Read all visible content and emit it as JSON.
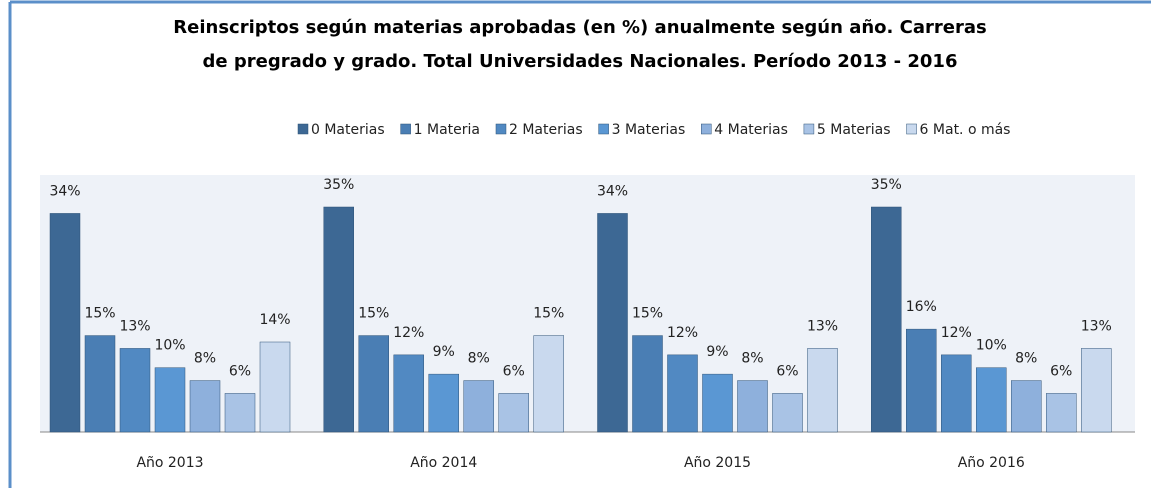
{
  "chart_data": {
    "type": "bar",
    "title": [
      "Reinscriptos según materias aprobadas (en %) anualmente según año. Carreras",
      "de pregrado y grado. Total Universidades Nacionales. Período 2013 -  2016"
    ],
    "categories": [
      "Año 2013",
      "Año 2014",
      "Año 2015",
      "Año 2016"
    ],
    "series": [
      {
        "name": "0 Materias",
        "color": "#3d6894",
        "values": [
          34,
          35,
          34,
          35
        ],
        "value_labels": [
          "34%",
          "35%",
          "34%",
          "35%"
        ]
      },
      {
        "name": "1 Materia",
        "color": "#4a7eb4",
        "values": [
          15,
          15,
          15,
          16
        ],
        "value_labels": [
          "15%",
          "15%",
          "15%",
          "16%"
        ]
      },
      {
        "name": "2 Materias",
        "color": "#5189c2",
        "values": [
          13,
          12,
          12,
          12
        ],
        "value_labels": [
          "13%",
          "12%",
          "12%",
          "12%"
        ]
      },
      {
        "name": "3 Materias",
        "color": "#5a97d3",
        "values": [
          10,
          9,
          9,
          10
        ],
        "value_labels": [
          "10%",
          "9%",
          "9%",
          "10%"
        ]
      },
      {
        "name": "4 Materias",
        "color": "#8eb0dc",
        "values": [
          8,
          8,
          8,
          8
        ],
        "value_labels": [
          "8%",
          "8%",
          "8%",
          "8%"
        ]
      },
      {
        "name": "5 Materias",
        "color": "#a9c3e5",
        "values": [
          6,
          6,
          6,
          6
        ],
        "value_labels": [
          "6%",
          "6%",
          "6%",
          "6%"
        ]
      },
      {
        "name": "6 Mat. o más",
        "color": "#c9d9ee",
        "values": [
          14,
          15,
          13,
          13
        ],
        "value_labels": [
          "14%",
          "15%",
          "13%",
          "13%"
        ]
      }
    ],
    "legend": "top"
  }
}
